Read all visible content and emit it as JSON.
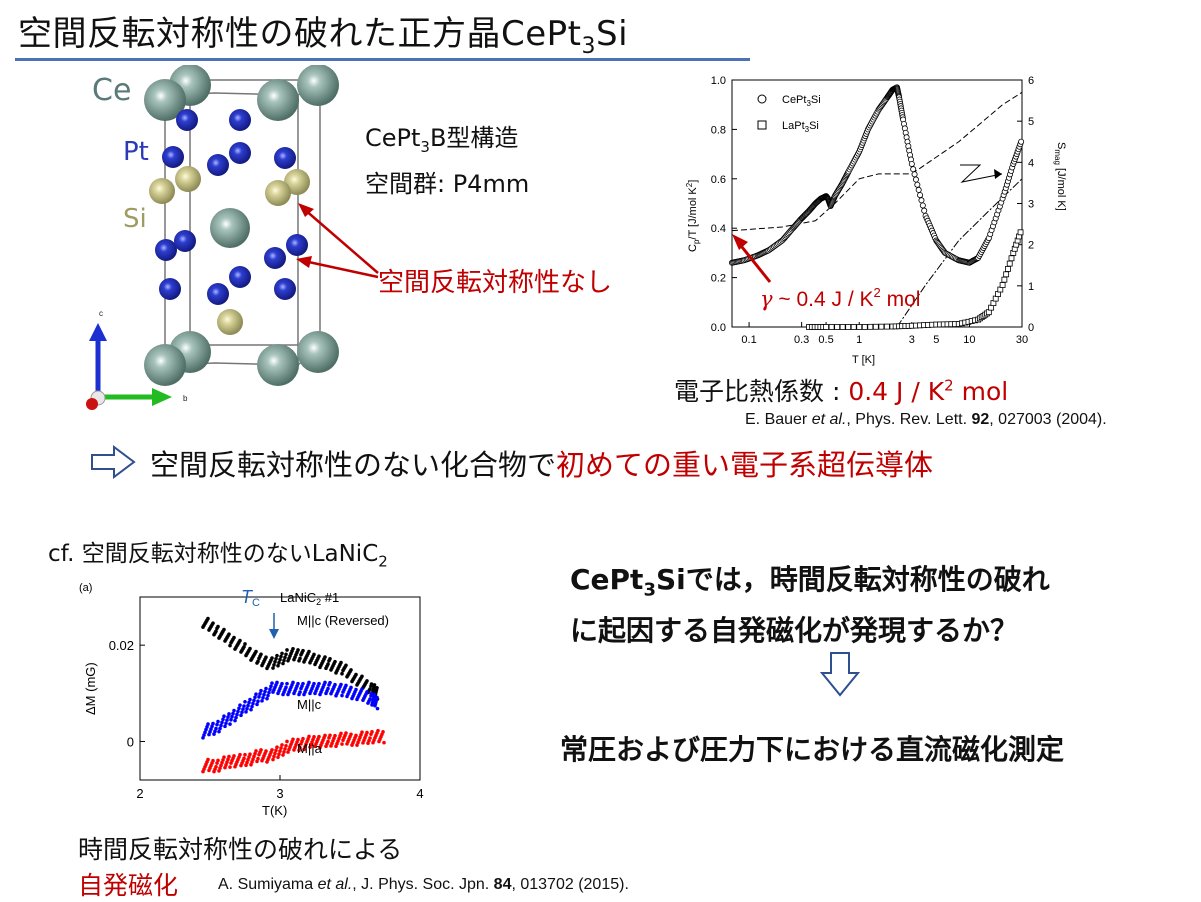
{
  "title": {
    "main": "空間反転対称性の破れた正方晶CePt",
    "sub": "3",
    "tail": "Si"
  },
  "crystal": {
    "labels": {
      "ce": "Ce",
      "pt": "Pt",
      "si": "Si"
    },
    "axes": {
      "c": "c",
      "b": "b"
    },
    "structure_pre": "CePt",
    "structure_sub": "3",
    "structure_post": "B型構造",
    "space_group": "空間群: P4mm",
    "no_inversion": "空間反転対称性なし"
  },
  "specific_heat": {
    "ylabel_left_main": "C",
    "ylabel_left_sub": "p",
    "ylabel_left_rest": "/T [J/mol K",
    "ylabel_left_sup": "2",
    "ylabel_left_end": "]",
    "ylabel_right_main": "S",
    "ylabel_right_sub": "mag",
    "ylabel_right_rest": " [J/mol K]",
    "xlabel": "T [K]",
    "legend": [
      {
        "pre": "CePt",
        "sub": "3",
        "post": "Si"
      },
      {
        "pre": "LaPt",
        "sub": "3",
        "post": "Si"
      }
    ],
    "left_ticks": [
      "0.0",
      "0.2",
      "0.4",
      "0.6",
      "0.8",
      "1.0"
    ],
    "right_ticks": [
      "0",
      "1",
      "2",
      "3",
      "4",
      "5",
      "6"
    ],
    "x_ticks": [
      "0.1",
      "0.3",
      "0.5",
      "1",
      "3",
      "5",
      "10",
      "30"
    ],
    "gamma_annotation": {
      "symbol": "γ",
      "text": " ~ 0.4 J / K",
      "sup": "2",
      "tail": " mol"
    }
  },
  "electron_heat": {
    "label": "電子比熱係数 : ",
    "value": "0.4 J / K",
    "sup": "2",
    "unit": " mol"
  },
  "ref1": {
    "authors": "E. Bauer ",
    "etal": "et al.",
    "journal": ", Phys. Rev. Lett. ",
    "volume": "92",
    "rest": ", 027003 (2004)."
  },
  "conclusion": {
    "arrow": "⇨",
    "normal": "空間反転対称性のない化合物で",
    "emph": "初めての重い電子系超伝導体"
  },
  "cf": {
    "pre": "cf. 空間反転対称性のないLaNiC",
    "sub": "2"
  },
  "magnetization": {
    "panel": "(a)",
    "ylabel": "ΔM (mG)",
    "xlabel": "T(K)",
    "x_ticks": [
      "2",
      "3",
      "4"
    ],
    "y_ticks": [
      "0",
      "0.02"
    ],
    "tc": {
      "main": "T",
      "sub": "C"
    },
    "sample": {
      "pre": "LaNiC",
      "sub": "2",
      "post": " #1"
    },
    "series": [
      "M||c (Reversed)",
      "M||c",
      "M||a"
    ]
  },
  "bottom_left": {
    "line1": "時間反転対称性の破れによる",
    "line2": "自発磁化"
  },
  "ref2": {
    "authors": "A. Sumiyama ",
    "etal": "et al.",
    "journal": ", J. Phys. Soc. Jpn. ",
    "volume": "84",
    "rest": ", 013702 (2015)."
  },
  "question": {
    "pre": "CePt",
    "sub": "3",
    "line1_rest": "Siでは，時間反転対称性の破れ",
    "line2": "に起因する自発磁化が発現するか？"
  },
  "down_arrow": "⇩",
  "method": "常圧および圧力下における直流磁化測定",
  "chart_data": [
    {
      "type": "scatter",
      "xscale": "log",
      "xlabel": "T [K]",
      "ylabel": "Cp/T [J/mol K2]",
      "ylabel_right": "Smag [J/mol K]",
      "xlim": [
        0.07,
        30
      ],
      "ylim": [
        0,
        1.0
      ],
      "ylim_right": [
        0,
        6
      ],
      "series": [
        {
          "name": "CePt3Si",
          "x": [
            0.07,
            0.09,
            0.12,
            0.15,
            0.2,
            0.25,
            0.3,
            0.35,
            0.4,
            0.45,
            0.5,
            0.52,
            0.55,
            0.6,
            0.7,
            0.8,
            1.0,
            1.2,
            1.5,
            1.8,
            2.0,
            2.2,
            2.3,
            2.5,
            3.0,
            4.0,
            5.0,
            6.0,
            8.0,
            10,
            12,
            15,
            20,
            25,
            30
          ],
          "y": [
            0.26,
            0.27,
            0.29,
            0.31,
            0.35,
            0.4,
            0.44,
            0.47,
            0.5,
            0.52,
            0.53,
            0.52,
            0.49,
            0.53,
            0.58,
            0.63,
            0.71,
            0.8,
            0.88,
            0.93,
            0.96,
            0.97,
            0.93,
            0.84,
            0.66,
            0.45,
            0.35,
            0.3,
            0.27,
            0.26,
            0.28,
            0.36,
            0.52,
            0.66,
            0.76
          ]
        },
        {
          "name": "LaPt3Si",
          "x": [
            0.35,
            0.5,
            1.0,
            2.0,
            3.0,
            5.0,
            8.0,
            12,
            15,
            20,
            25,
            30
          ],
          "y": [
            0.0,
            0.0,
            0.0,
            0.002,
            0.005,
            0.01,
            0.012,
            0.03,
            0.06,
            0.17,
            0.3,
            0.4
          ]
        }
      ]
    },
    {
      "type": "scatter",
      "xlabel": "T(K)",
      "ylabel": "ΔM (mG)",
      "xlim": [
        2,
        4
      ],
      "ylim": [
        -0.008,
        0.03
      ],
      "series": [
        {
          "name": "M||c (Reversed)",
          "color": "#000000",
          "x": [
            2.45,
            2.55,
            2.65,
            2.75,
            2.85,
            2.95,
            3.05,
            3.15,
            3.25,
            3.35,
            3.45,
            3.55,
            3.65,
            3.7
          ],
          "y": [
            0.025,
            0.023,
            0.021,
            0.019,
            0.017,
            0.016,
            0.018,
            0.018,
            0.017,
            0.016,
            0.015,
            0.013,
            0.011,
            0.01
          ]
        },
        {
          "name": "M||c",
          "color": "#0000ff",
          "x": [
            2.45,
            2.55,
            2.65,
            2.75,
            2.85,
            2.95,
            3.05,
            3.15,
            3.25,
            3.35,
            3.45,
            3.55,
            3.65,
            3.7
          ],
          "y": [
            0.002,
            0.003,
            0.005,
            0.007,
            0.009,
            0.011,
            0.011,
            0.011,
            0.011,
            0.011,
            0.0105,
            0.01,
            0.009,
            0.008
          ]
        },
        {
          "name": "M||a",
          "color": "#ff0000",
          "x": [
            2.45,
            2.55,
            2.65,
            2.75,
            2.85,
            2.95,
            3.05,
            3.15,
            3.25,
            3.35,
            3.45,
            3.55,
            3.65,
            3.75
          ],
          "y": [
            -0.005,
            -0.005,
            -0.004,
            -0.004,
            -0.003,
            -0.003,
            -0.001,
            -0.0005,
            0.0,
            0.0,
            0.0005,
            0.0005,
            0.001,
            0.001
          ]
        }
      ]
    }
  ]
}
